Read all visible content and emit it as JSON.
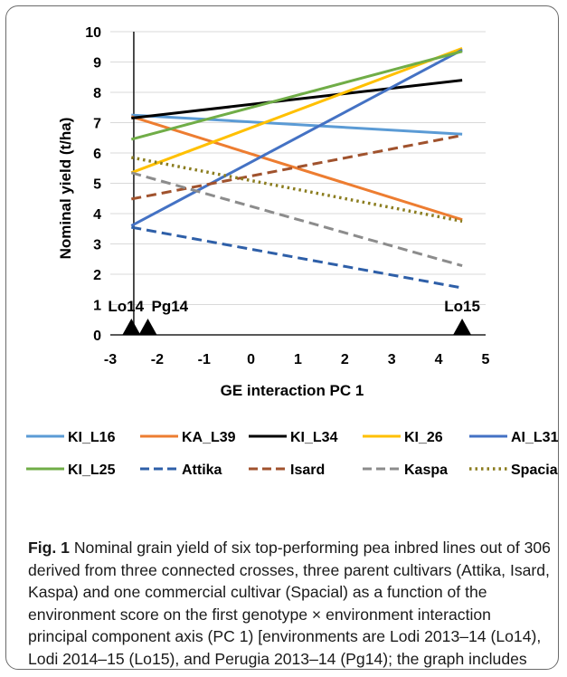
{
  "chart_data": {
    "type": "line",
    "xlabel": "GE interaction PC 1",
    "ylabel": "Nominal yield (t/ha)",
    "xlim": [
      -3,
      5
    ],
    "ylim": [
      0,
      10
    ],
    "xticks": [
      "-3",
      "-2",
      "-1",
      "0",
      "1",
      "2",
      "3",
      "4",
      "5"
    ],
    "yticks": [
      "0",
      "1",
      "2",
      "3",
      "4",
      "5",
      "6",
      "7",
      "8",
      "9",
      "10"
    ],
    "grid": "horizontal",
    "legend_position": "bottom",
    "series": [
      {
        "name": "KI_L16",
        "color": "#5b9bd5",
        "dash": "solid",
        "x": [
          -2.55,
          4.5
        ],
        "y": [
          7.25,
          6.62
        ]
      },
      {
        "name": "KA_L39",
        "color": "#ed7d31",
        "dash": "solid",
        "x": [
          -2.55,
          4.5
        ],
        "y": [
          7.2,
          3.8
        ]
      },
      {
        "name": "KI_L34",
        "color": "#000000",
        "dash": "solid",
        "x": [
          -2.55,
          4.5
        ],
        "y": [
          7.15,
          8.4
        ]
      },
      {
        "name": "KI_26",
        "color": "#ffc000",
        "dash": "solid",
        "x": [
          -2.55,
          4.5
        ],
        "y": [
          5.35,
          9.45
        ]
      },
      {
        "name": "AI_L31",
        "color": "#4472c4",
        "dash": "solid",
        "x": [
          -2.55,
          4.5
        ],
        "y": [
          3.6,
          9.4
        ]
      },
      {
        "name": "KI_L25",
        "color": "#70ad47",
        "dash": "solid",
        "x": [
          -2.55,
          4.5
        ],
        "y": [
          6.45,
          9.35
        ]
      },
      {
        "name": "Attika",
        "color": "#2e5fa8",
        "dash": "dash",
        "x": [
          -2.55,
          4.5
        ],
        "y": [
          3.55,
          1.55
        ]
      },
      {
        "name": "Isard",
        "color": "#a0522d",
        "dash": "dash",
        "x": [
          -2.55,
          4.5
        ],
        "y": [
          4.48,
          6.58
        ]
      },
      {
        "name": "Kaspa",
        "color": "#8c8c8c",
        "dash": "dash",
        "x": [
          -2.55,
          4.5
        ],
        "y": [
          5.35,
          2.28
        ]
      },
      {
        "name": "Spacial",
        "color": "#8b7d1f",
        "dash": "dot",
        "x": [
          -2.55,
          4.5
        ],
        "y": [
          5.85,
          3.75
        ]
      }
    ],
    "environment_markers": [
      {
        "label": "Lo14",
        "x": -2.55
      },
      {
        "label": "Pg14",
        "x": -2.2
      },
      {
        "label": "Lo15",
        "x": 4.5
      }
    ]
  },
  "caption": {
    "label": "Fig. 1",
    "text": "Nominal grain yield of six top-performing pea inbred lines out of 306 derived from three connected crosses, three parent cultivars (Attika, Isard, Kaspa) and one commercial cultivar (Spacial) as a function of the environment score on the first genotype × environment interaction principal component axis (PC 1) [environments are Lodi 2013–14 (Lo14), Lodi 2014–15 (Lo15), and Perugia 2013–14 (Pg14); the graph includes the two top-yielding lines in each environment or across environments]"
  }
}
